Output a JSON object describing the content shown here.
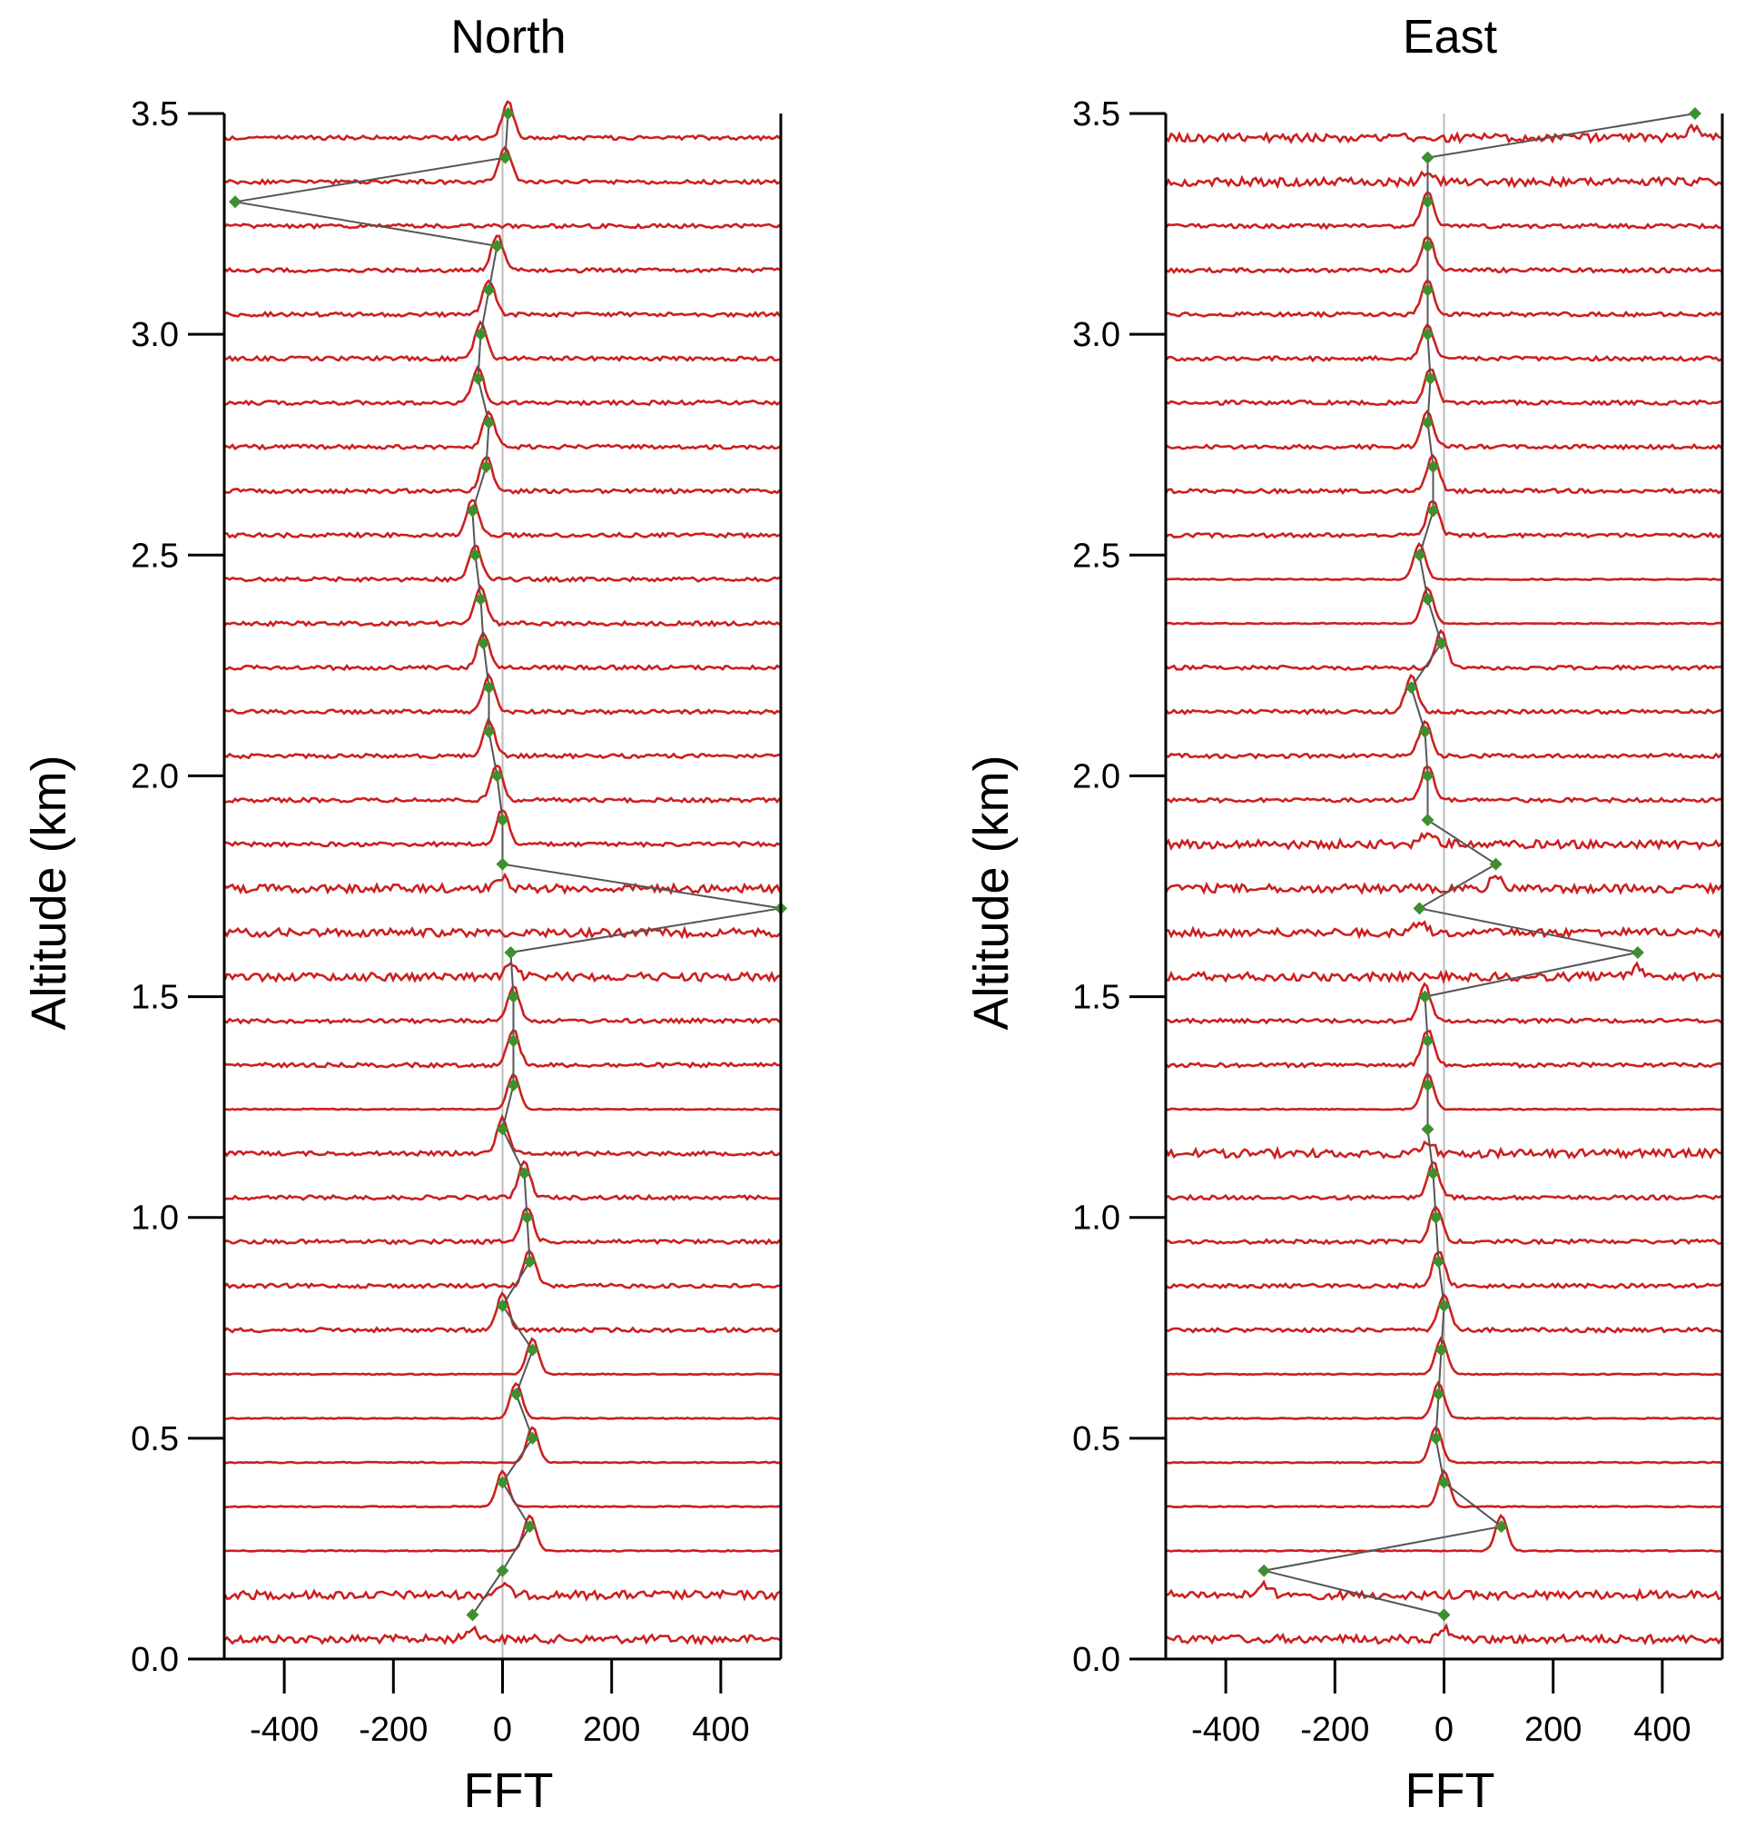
{
  "colors": {
    "spectrum": "#cc1f1f",
    "marker": "#3f8f2f",
    "line": "#555555",
    "zero_line": "#bbbbbb",
    "axis": "#000000"
  },
  "chart_data": [
    {
      "type": "line",
      "title": "North",
      "xlabel": "FFT",
      "ylabel": "Altitude (km)",
      "xlim": [
        -510,
        510
      ],
      "ylim": [
        0.0,
        3.5
      ],
      "xticks": [
        -400,
        -200,
        0,
        200,
        400
      ],
      "xtick_labels": [
        "-400",
        "-200",
        "0",
        "200",
        "400"
      ],
      "yticks": [
        0.0,
        0.5,
        1.0,
        1.5,
        2.0,
        2.5,
        3.0,
        3.5
      ],
      "ytick_labels": [
        "0.0",
        "0.5",
        "1.0",
        "1.5",
        "2.0",
        "2.5",
        "3.0",
        "3.5"
      ],
      "altitudes": [
        0.1,
        0.2,
        0.3,
        0.4,
        0.5,
        0.6,
        0.7,
        0.8,
        0.9,
        1.0,
        1.1,
        1.2,
        1.3,
        1.4,
        1.5,
        1.6,
        1.7,
        1.8,
        1.9,
        2.0,
        2.1,
        2.2,
        2.3,
        2.4,
        2.5,
        2.6,
        2.7,
        2.8,
        2.9,
        3.0,
        3.1,
        3.2,
        3.3,
        3.4,
        3.5
      ],
      "peak_fft": [
        -55,
        0,
        50,
        0,
        55,
        25,
        55,
        0,
        50,
        45,
        40,
        0,
        20,
        20,
        20,
        15,
        510,
        0,
        0,
        -10,
        -25,
        -25,
        -35,
        -40,
        -50,
        -55,
        -30,
        -25,
        -45,
        -40,
        -25,
        -10,
        -490,
        5,
        10
      ],
      "spectrum_noise": [
        "high",
        "high",
        "low",
        "low",
        "low",
        "low",
        "low",
        "med",
        "med",
        "med",
        "med",
        "med",
        "low",
        "med",
        "med",
        "high",
        "high",
        "high",
        "med",
        "med",
        "med",
        "med",
        "med",
        "med",
        "med",
        "med",
        "med",
        "med",
        "med",
        "med",
        "med",
        "med",
        "med",
        "med",
        "med"
      ]
    },
    {
      "type": "line",
      "title": "East",
      "xlabel": "FFT",
      "ylabel": "Altitude (km)",
      "xlim": [
        -510,
        510
      ],
      "ylim": [
        0.0,
        3.5
      ],
      "xticks": [
        -400,
        -200,
        0,
        200,
        400
      ],
      "xtick_labels": [
        "-400",
        "-200",
        "0",
        "200",
        "400"
      ],
      "yticks": [
        0.0,
        0.5,
        1.0,
        1.5,
        2.0,
        2.5,
        3.0,
        3.5
      ],
      "ytick_labels": [
        "0.0",
        "0.5",
        "1.0",
        "1.5",
        "2.0",
        "2.5",
        "3.0",
        "3.5"
      ],
      "altitudes": [
        0.1,
        0.2,
        0.3,
        0.4,
        0.5,
        0.6,
        0.7,
        0.8,
        0.9,
        1.0,
        1.1,
        1.2,
        1.3,
        1.4,
        1.5,
        1.6,
        1.7,
        1.8,
        1.9,
        2.0,
        2.1,
        2.2,
        2.3,
        2.4,
        2.5,
        2.6,
        2.7,
        2.8,
        2.9,
        3.0,
        3.1,
        3.2,
        3.3,
        3.4,
        3.5
      ],
      "peak_fft": [
        0,
        -330,
        105,
        0,
        -15,
        -10,
        -5,
        0,
        -10,
        -15,
        -20,
        -30,
        -30,
        -30,
        -35,
        355,
        -45,
        95,
        -30,
        -30,
        -35,
        -60,
        -5,
        -30,
        -45,
        -20,
        -20,
        -30,
        -25,
        -30,
        -30,
        -30,
        -30,
        -30,
        460
      ],
      "spectrum_noise": [
        "high",
        "high",
        "low",
        "low",
        "low",
        "low",
        "low",
        "med",
        "med",
        "med",
        "med",
        "high",
        "low",
        "med",
        "med",
        "high",
        "high",
        "high",
        "high",
        "med",
        "med",
        "med",
        "med",
        "low",
        "low",
        "med",
        "med",
        "med",
        "med",
        "med",
        "med",
        "med",
        "med",
        "high",
        "high"
      ]
    }
  ]
}
